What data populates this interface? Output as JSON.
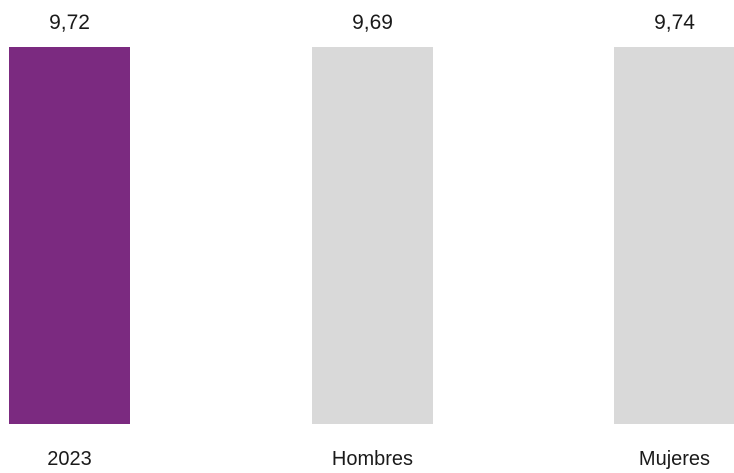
{
  "chart_data": {
    "type": "bar",
    "categories": [
      "2023",
      "Hombres",
      "Mujeres"
    ],
    "values": [
      9.72,
      9.69,
      9.74
    ],
    "value_labels": [
      "9,72",
      "9,69",
      "9,74"
    ],
    "colors": [
      "#7b2a80",
      "#d9d9d9",
      "#d9d9d9"
    ],
    "title": "",
    "xlabel": "",
    "ylabel": "",
    "grid": false,
    "legend": "none"
  }
}
